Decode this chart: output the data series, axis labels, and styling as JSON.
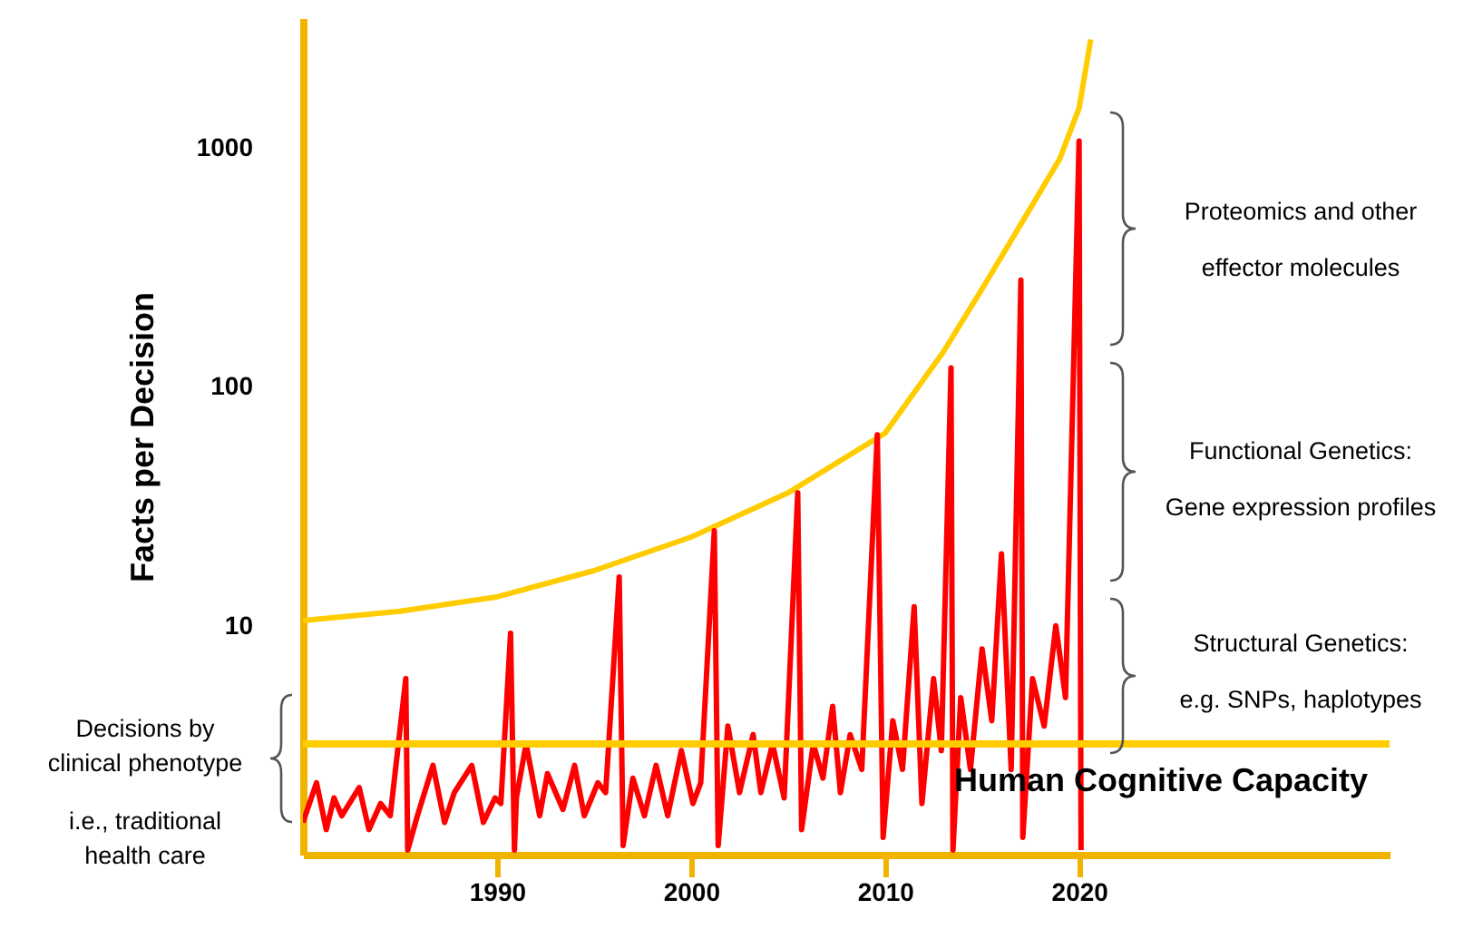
{
  "chart_data": {
    "type": "line",
    "ylabel": "Facts per Decision",
    "log": "y",
    "xlim": [
      1980,
      2036
    ],
    "xticks": [
      1990,
      2000,
      2010,
      2020
    ],
    "ylim": [
      1.1,
      3500
    ],
    "yticks": [
      10,
      100,
      1000
    ],
    "grid": false,
    "marker": "none",
    "line_style": "solid",
    "series": [
      {
        "color": "#ffcc00",
        "x": [
          1980,
          1985,
          1990,
          1995,
          2000,
          2005,
          2010,
          2013,
          2015,
          2017,
          2019,
          2020,
          2020.6
        ],
        "values": [
          10.5,
          11.5,
          13.2,
          17,
          23.5,
          36,
          64,
          140,
          257,
          480,
          900,
          1470,
          2850
        ]
      },
      {
        "color": "#ff0000",
        "x": [
          1980.0,
          1980.7,
          1981.2,
          1981.6,
          1982.0,
          1982.9,
          1983.4,
          1984.0,
          1984.5,
          1985.3,
          1985.4,
          1985.9,
          1986.7,
          1987.3,
          1987.8,
          1988.7,
          1989.3,
          1989.9,
          1990.2,
          1990.7,
          1990.9,
          1991.0,
          1991.5,
          1992.2,
          1992.6,
          1993.4,
          1994.0,
          1994.5,
          1995.2,
          1995.6,
          1996.3,
          1996.5,
          1997.0,
          1997.6,
          1998.2,
          1998.8,
          1999.5,
          2000.1,
          2000.5,
          2001.2,
          2001.4,
          2001.9,
          2002.5,
          2003.2,
          2003.6,
          2004.2,
          2004.8,
          2005.5,
          2005.7,
          2006.3,
          2006.8,
          2007.3,
          2007.7,
          2008.2,
          2008.8,
          2009.6,
          2009.9,
          2010.4,
          2010.9,
          2011.5,
          2011.9,
          2012.5,
          2012.9,
          2013.4,
          2013.5,
          2013.9,
          2014.4,
          2015.0,
          2015.5,
          2016.0,
          2016.5,
          2017.0,
          2017.1,
          2017.6,
          2018.2,
          2018.8,
          2019.3,
          2020.0,
          2020.1
        ],
        "values": [
          1.5,
          2.2,
          1.4,
          1.9,
          1.6,
          2.1,
          1.4,
          1.8,
          1.6,
          6.0,
          1.15,
          1.6,
          2.6,
          1.5,
          2.0,
          2.6,
          1.5,
          1.9,
          1.8,
          9.3,
          1.15,
          1.9,
          3.2,
          1.6,
          2.4,
          1.7,
          2.6,
          1.6,
          2.2,
          2.0,
          16,
          1.2,
          2.3,
          1.6,
          2.6,
          1.6,
          3.0,
          1.8,
          2.2,
          25,
          1.2,
          3.8,
          2.0,
          3.5,
          2.0,
          3.2,
          1.9,
          36,
          1.4,
          3.2,
          2.3,
          4.6,
          2.0,
          3.5,
          2.5,
          63,
          1.3,
          4.0,
          2.5,
          12,
          1.8,
          6,
          3.0,
          120,
          1.15,
          5,
          2.5,
          8,
          4,
          20,
          2.5,
          280,
          1.3,
          6,
          3.8,
          10,
          5,
          1070,
          1.15
        ]
      }
    ],
    "ref_lines": [
      {
        "axis": "y",
        "value": 3.2,
        "label": "Human Cognitive Capacity",
        "color": "#ffcc00"
      }
    ],
    "annotations": [
      "Proteomics and other\neffector molecules",
      "Functional Genetics:\nGene expression profiles",
      "Structural Genetics:\ne.g. SNPs, haplotypes",
      "Decisions by\nclinical phenotype\n\ni.e., traditional\nhealth care"
    ]
  }
}
